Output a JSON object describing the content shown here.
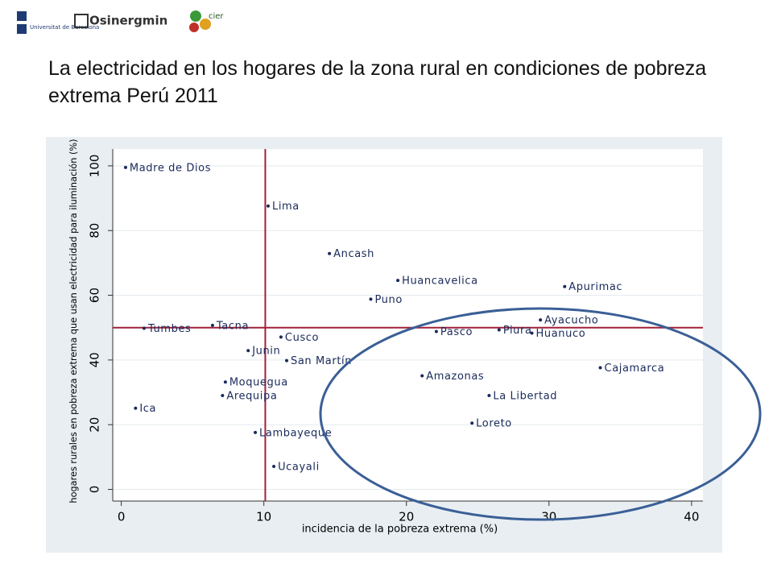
{
  "logos": {
    "ub": "Universitat de Barcelona",
    "osinergmin": "Osinergmin",
    "cier": "cier"
  },
  "chart_data": {
    "type": "scatter",
    "title": "La electricidad en los hogares de la zona rural en condiciones de pobreza extrema Perú 2011",
    "x_label": "incidencia de la pobreza extrema (%)",
    "y_label": "hogares rurales en pobreza extrema que usan electricidad para iluminación (%)",
    "labels": [
      "Madre de Dios",
      "Lima",
      "Ancash",
      "Huancavelica",
      "Puno",
      "Apurimac",
      "Ayacucho",
      "Piura",
      "Huanuco",
      "Pasco",
      "Tumbes",
      "Tacna",
      "Cusco",
      "Junin",
      "San Martín",
      "Amazonas",
      "Cajamarca",
      "Moquegua",
      "Arequipa",
      "La Libertad",
      "Ica",
      "Loreto",
      "Lambayeque",
      "Ucayali"
    ],
    "x": [
      0.3,
      10.3,
      14.6,
      19.4,
      17.5,
      31.1,
      29.4,
      26.5,
      28.8,
      22.1,
      1.6,
      6.4,
      11.2,
      8.9,
      11.6,
      21.1,
      33.6,
      7.3,
      7.1,
      25.8,
      1.0,
      24.6,
      9.4,
      10.7
    ],
    "values": [
      99.5,
      87.6,
      72.9,
      64.6,
      58.8,
      62.7,
      52.4,
      49.3,
      48.3,
      48.8,
      49.8,
      50.7,
      47.1,
      42.9,
      39.8,
      35.1,
      37.6,
      33.2,
      29.0,
      29.0,
      25.1,
      20.5,
      17.6,
      7.1
    ],
    "color": "#1a2a5a",
    "xlim": [
      -0.6,
      40.8
    ],
    "ylim": [
      -3.6,
      105.2
    ],
    "xticks": [
      0,
      10,
      20,
      30,
      40
    ],
    "yticks": [
      0,
      20,
      40,
      60,
      80,
      100
    ],
    "xline": 10.1,
    "yline": 50,
    "ref_color": "#a0213a",
    "grid": true
  }
}
